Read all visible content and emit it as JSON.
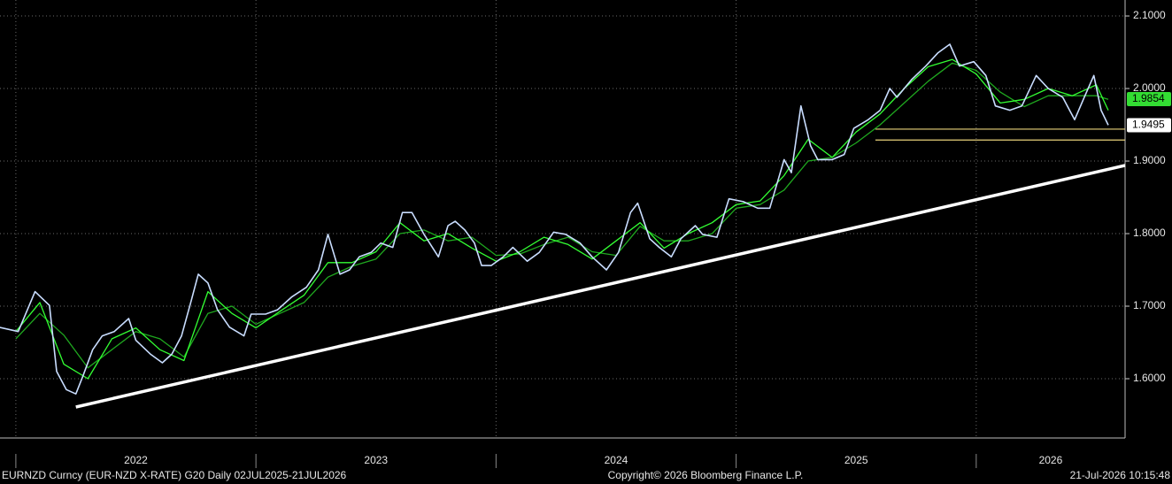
{
  "chart_data": {
    "type": "line",
    "footer_left": "EURNZD Curncy (EUR-NZD X-RATE) G20 Daily 02JUL2025-21JUL2026",
    "footer_center": "Copyright© 2026 Bloomberg Finance L.P.",
    "footer_right": "21-Jul-2026 10:15:48",
    "xlim": [
      2021.934,
      2026.62
    ],
    "xticks": [
      2022,
      2023,
      2024,
      2025,
      2026
    ],
    "ylim": [
      1.5183,
      2.122
    ],
    "yticks": [
      {
        "value": 2.1,
        "label": "2.1000"
      },
      {
        "value": 2.0,
        "label": "2.0000"
      },
      {
        "value": 1.9,
        "label": "1.9000"
      },
      {
        "value": 1.8,
        "label": "1.8000"
      },
      {
        "value": 1.7,
        "label": "1.7000"
      },
      {
        "value": 1.6,
        "label": "1.6000"
      }
    ],
    "grid": true,
    "series": [
      {
        "color": "#c9ddff",
        "x": [
          2021.93,
          2022.01,
          2022.08,
          2022.14,
          2022.17,
          2022.21,
          2022.25,
          2022.28,
          2022.32,
          2022.36,
          2022.41,
          2022.47,
          2022.5,
          2022.56,
          2022.61,
          2022.65,
          2022.69,
          2022.73,
          2022.76,
          2022.8,
          2022.84,
          2022.89,
          2022.95,
          2022.98,
          2023.04,
          2023.09,
          2023.15,
          2023.21,
          2023.26,
          2023.3,
          2023.35,
          2023.39,
          2023.43,
          2023.48,
          2023.52,
          2023.57,
          2023.61,
          2023.65,
          2023.7,
          2023.76,
          2023.8,
          2023.83,
          2023.87,
          2023.91,
          2023.94,
          2023.98,
          2024.03,
          2024.07,
          2024.13,
          2024.18,
          2024.24,
          2024.29,
          2024.35,
          2024.4,
          2024.46,
          2024.51,
          2024.56,
          2024.59,
          2024.64,
          2024.68,
          2024.73,
          2024.77,
          2024.83,
          2024.86,
          2024.92,
          2024.97,
          2025.03,
          2025.09,
          2025.14,
          2025.2,
          2025.23,
          2025.27,
          2025.31,
          2025.34,
          2025.4,
          2025.45,
          2025.49,
          2025.55,
          2025.6,
          2025.64,
          2025.67,
          2025.73,
          2025.79,
          2025.84,
          2025.89,
          2025.93,
          2025.99,
          2026.04,
          2026.08,
          2026.14,
          2026.19,
          2026.25,
          2026.3,
          2026.36,
          2026.41,
          2026.45,
          2026.49,
          2026.52,
          2026.55
        ],
        "values": [
          1.671,
          1.665,
          1.72,
          1.701,
          1.61,
          1.585,
          1.579,
          1.604,
          1.64,
          1.659,
          1.665,
          1.683,
          1.653,
          1.634,
          1.622,
          1.634,
          1.659,
          1.707,
          1.744,
          1.732,
          1.695,
          1.671,
          1.659,
          1.689,
          1.689,
          1.695,
          1.713,
          1.726,
          1.75,
          1.799,
          1.744,
          1.75,
          1.768,
          1.774,
          1.787,
          1.781,
          1.829,
          1.829,
          1.799,
          1.768,
          1.811,
          1.817,
          1.805,
          1.787,
          1.756,
          1.756,
          1.768,
          1.781,
          1.762,
          1.774,
          1.802,
          1.799,
          1.787,
          1.768,
          1.75,
          1.774,
          1.829,
          1.842,
          1.793,
          1.781,
          1.768,
          1.793,
          1.811,
          1.799,
          1.795,
          1.848,
          1.844,
          1.835,
          1.835,
          1.902,
          1.884,
          1.976,
          1.921,
          1.902,
          1.902,
          1.909,
          1.945,
          1.957,
          1.97,
          2.0,
          1.988,
          2.012,
          2.031,
          2.049,
          2.061,
          2.031,
          2.037,
          2.018,
          1.976,
          1.97,
          1.976,
          2.018,
          2.0,
          1.988,
          1.957,
          1.988,
          2.018,
          1.97,
          1.9495
        ]
      },
      {
        "color": "#33ff33",
        "x": [
          2022.0,
          2022.1,
          2022.2,
          2022.3,
          2022.4,
          2022.5,
          2022.6,
          2022.7,
          2022.8,
          2022.9,
          2023.0,
          2023.1,
          2023.2,
          2023.3,
          2023.4,
          2023.5,
          2023.6,
          2023.7,
          2023.8,
          2023.9,
          2024.0,
          2024.1,
          2024.2,
          2024.3,
          2024.4,
          2024.5,
          2024.6,
          2024.7,
          2024.8,
          2024.9,
          2025.0,
          2025.1,
          2025.2,
          2025.3,
          2025.4,
          2025.5,
          2025.6,
          2025.7,
          2025.8,
          2025.9,
          2026.0,
          2026.1,
          2026.2,
          2026.3,
          2026.4,
          2026.5,
          2026.55
        ],
        "values": [
          1.665,
          1.705,
          1.62,
          1.6,
          1.655,
          1.67,
          1.64,
          1.625,
          1.72,
          1.69,
          1.67,
          1.693,
          1.715,
          1.76,
          1.76,
          1.775,
          1.815,
          1.79,
          1.8,
          1.78,
          1.762,
          1.775,
          1.795,
          1.785,
          1.765,
          1.79,
          1.815,
          1.78,
          1.8,
          1.815,
          1.84,
          1.845,
          1.88,
          1.93,
          1.905,
          1.94,
          1.965,
          2.0,
          2.03,
          2.04,
          2.02,
          1.98,
          1.985,
          2.0,
          1.99,
          2.005,
          1.97
        ]
      },
      {
        "color": "#1fa81f",
        "x": [
          2022.0,
          2022.1,
          2022.2,
          2022.3,
          2022.4,
          2022.5,
          2022.6,
          2022.7,
          2022.8,
          2022.9,
          2023.0,
          2023.1,
          2023.2,
          2023.3,
          2023.4,
          2023.5,
          2023.6,
          2023.7,
          2023.8,
          2023.9,
          2024.0,
          2024.1,
          2024.2,
          2024.3,
          2024.4,
          2024.5,
          2024.6,
          2024.7,
          2024.8,
          2024.9,
          2025.0,
          2025.1,
          2025.2,
          2025.3,
          2025.4,
          2025.5,
          2025.6,
          2025.7,
          2025.8,
          2025.9,
          2026.0,
          2026.1,
          2026.2,
          2026.3,
          2026.4,
          2026.5,
          2026.55
        ],
        "values": [
          1.655,
          1.69,
          1.66,
          1.615,
          1.64,
          1.665,
          1.655,
          1.63,
          1.69,
          1.7,
          1.675,
          1.69,
          1.705,
          1.74,
          1.755,
          1.765,
          1.8,
          1.805,
          1.79,
          1.795,
          1.77,
          1.772,
          1.785,
          1.795,
          1.775,
          1.77,
          1.81,
          1.79,
          1.79,
          1.8,
          1.835,
          1.84,
          1.86,
          1.9,
          1.905,
          1.925,
          1.95,
          1.98,
          2.01,
          2.035,
          2.025,
          1.995,
          1.975,
          1.99,
          1.99,
          1.99,
          1.985
        ]
      }
    ],
    "trendline": {
      "color": "#ffffff",
      "x": [
        2022.25,
        2026.62
      ],
      "y": [
        1.561,
        1.894
      ]
    },
    "levels": [
      {
        "value": 1.944,
        "x_start": 2025.58,
        "color": "#e8d27a"
      },
      {
        "value": 1.929,
        "x_start": 2025.58,
        "color": "#e8d27a"
      }
    ],
    "price_labels": [
      {
        "value": 1.9854,
        "color": "#33dd33"
      },
      {
        "value": 1.9495,
        "color": "#ffffff"
      }
    ]
  }
}
